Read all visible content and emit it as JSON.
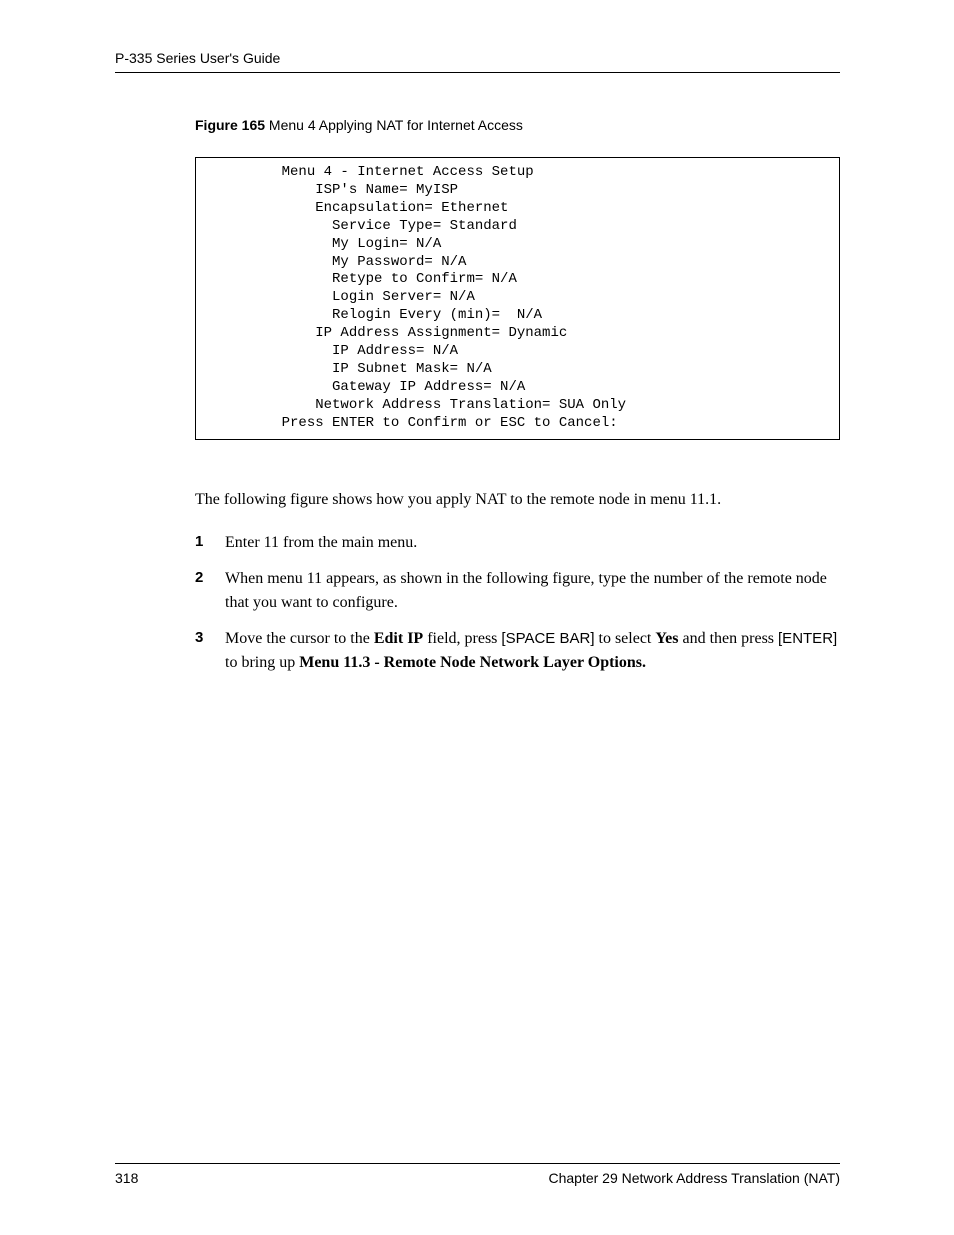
{
  "header": {
    "guide_title": "P-335 Series User's Guide"
  },
  "figure": {
    "label": "Figure 165",
    "title": "   Menu 4 Applying NAT for Internet Access"
  },
  "menu": {
    "title": "         Menu 4 - Internet Access Setup",
    "isp_name": "             ISP's Name= MyISP",
    "encap": "             Encapsulation= Ethernet",
    "service_type": "               Service Type= Standard",
    "my_login": "               My Login= N/A",
    "my_password": "               My Password= N/A",
    "retype": "               Retype to Confirm= N/A",
    "login_server": "               Login Server= N/A",
    "relogin": "               Relogin Every (min)=  N/A",
    "ip_assign": "             IP Address Assignment= Dynamic",
    "ip_addr": "               IP Address= N/A",
    "subnet": "               IP Subnet Mask= N/A",
    "gateway": "               Gateway IP Address= N/A",
    "nat": "             Network Address Translation= SUA Only",
    "footer": "         Press ENTER to Confirm or ESC to Cancel:"
  },
  "body": {
    "para1": "The following figure shows how you apply NAT to the remote node in menu 11.1."
  },
  "steps": {
    "s1": {
      "num": "1",
      "text": "Enter 11 from the main menu."
    },
    "s2": {
      "num": "2",
      "text": "When menu 11 appears, as shown in the following figure, type the number of the remote node that you want to configure."
    },
    "s3": {
      "num": "3",
      "t1": "Move the cursor to the ",
      "b1": "Edit IP",
      "t2": " field, press ",
      "k1": "[SPACE BAR]",
      "t3": " to select ",
      "b2": "Yes",
      "t4": " and then press ",
      "k2": "[ENTER]",
      "t5": " to bring up ",
      "b3": "Menu 11.3 - Remote Node Network Layer Options."
    }
  },
  "footer": {
    "page_number": "318",
    "chapter": "Chapter 29 Network Address Translation (NAT)"
  }
}
